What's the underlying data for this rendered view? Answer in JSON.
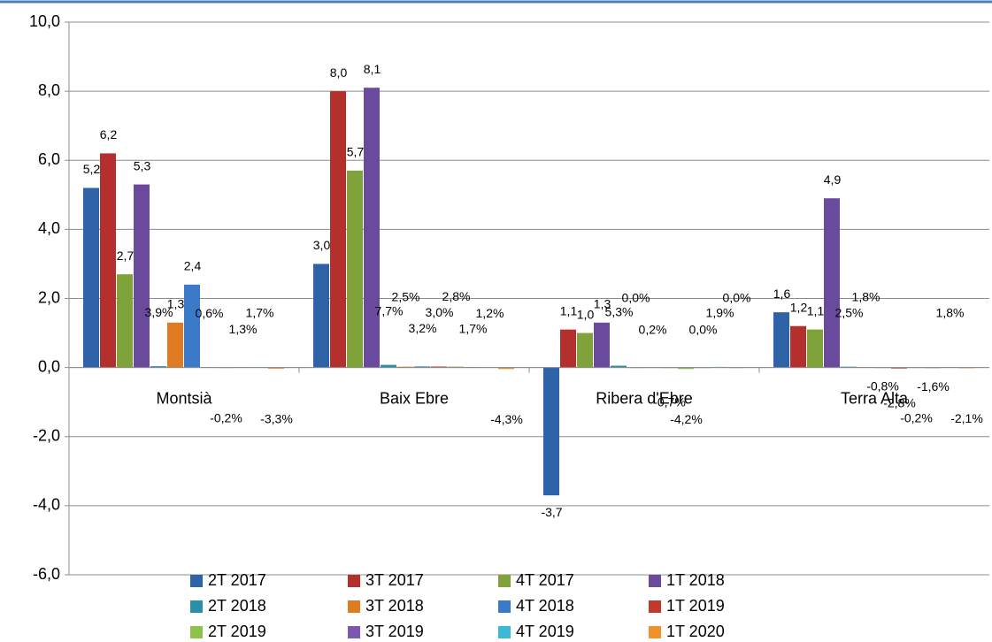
{
  "chart_data": {
    "type": "bar",
    "categories": [
      "Montsià",
      "Baix Ebre",
      "Ribera d'Ebre",
      "Terra Alta"
    ],
    "ylim": [
      -6,
      10
    ],
    "yticks": [
      {
        "value": -6,
        "label": "-6,0"
      },
      {
        "value": -4,
        "label": "-4,0"
      },
      {
        "value": -2,
        "label": "-2,0"
      },
      {
        "value": 0,
        "label": "0,0"
      },
      {
        "value": 2,
        "label": "2,0"
      },
      {
        "value": 4,
        "label": "4,0"
      },
      {
        "value": 6,
        "label": "6,0"
      },
      {
        "value": 8,
        "label": "8,0"
      },
      {
        "value": 10,
        "label": "10,0"
      }
    ],
    "grid": true,
    "legend": "bottom",
    "series": [
      {
        "name": "2T 2017",
        "color": "#2e63a8",
        "values": [
          5.2,
          3.0,
          -3.7,
          1.6
        ],
        "value_labels": [
          "5,2",
          "3,0",
          "-3,7",
          "1,6"
        ]
      },
      {
        "name": "3T 2017",
        "color": "#b3302c",
        "values": [
          6.2,
          8.0,
          1.1,
          1.2
        ],
        "value_labels": [
          "6,2",
          "8,0",
          "1,1",
          "1,2"
        ]
      },
      {
        "name": "4T 2017",
        "color": "#7fa33a",
        "values": [
          2.7,
          5.7,
          1.0,
          1.1
        ],
        "value_labels": [
          "2,7",
          "5,7",
          "1,0",
          "1,1"
        ]
      },
      {
        "name": "1T 2018",
        "color": "#6a4a9c",
        "values": [
          5.3,
          8.1,
          1.3,
          4.9
        ],
        "value_labels": [
          "5,3",
          "8,1",
          "1,3",
          "4,9"
        ]
      },
      {
        "name": "2T 2018",
        "color": "#2a8fa9",
        "values": [
          0.039,
          0.077,
          0.053,
          0.025
        ],
        "value_labels": [
          "3,9%",
          "7,7%",
          "5,3%",
          "2,5%"
        ]
      },
      {
        "name": "3T 2018",
        "color": "#e07b22",
        "values": [
          1.3,
          0.025,
          0.0,
          0.018
        ],
        "value_labels": [
          "1,3",
          "2,5%",
          "0,0%",
          "1,8%"
        ]
      },
      {
        "name": "4T 2018",
        "color": "#3b79c9",
        "values": [
          2.4,
          0.032,
          0.002,
          -0.008
        ],
        "value_labels": [
          "2,4",
          "3,2%",
          "0,2%",
          "-0,8%"
        ]
      },
      {
        "name": "1T 2019",
        "color": "#c23a2e",
        "values": [
          0.006,
          0.03,
          -0.007,
          -0.028
        ],
        "value_labels": [
          "0,6%",
          "3,0%",
          "-0,7%",
          "-2,8%"
        ]
      },
      {
        "name": "2T 2019",
        "color": "#8dc24b",
        "values": [
          -0.002,
          0.028,
          -0.042,
          -0.002
        ],
        "value_labels": [
          "-0,2%",
          "2,8%",
          "-4,2%",
          "-0,2%"
        ]
      },
      {
        "name": "3T 2019",
        "color": "#7c57b2",
        "values": [
          0.013,
          0.017,
          0.0,
          -0.016
        ],
        "value_labels": [
          "1,3%",
          "1,7%",
          "0,0%",
          "-1,6%"
        ]
      },
      {
        "name": "4T 2019",
        "color": "#3bb9d9",
        "values": [
          0.017,
          0.012,
          0.019,
          0.018
        ],
        "value_labels": [
          "1,7%",
          "1,2%",
          "1,9%",
          "1,8%"
        ]
      },
      {
        "name": "1T 2020",
        "color": "#f0912b",
        "values": [
          -0.033,
          -0.043,
          0.0,
          -0.021
        ],
        "value_labels": [
          "-3,3%",
          "-4,3%",
          "0,0%",
          "-2,1%"
        ]
      }
    ]
  }
}
